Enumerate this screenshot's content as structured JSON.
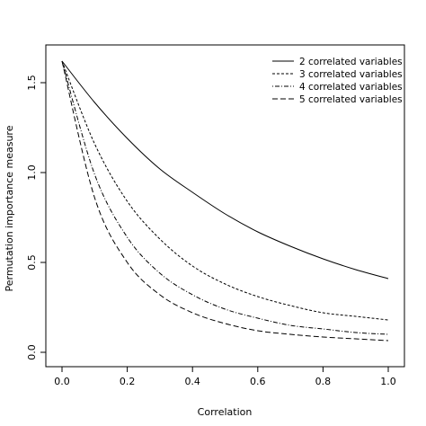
{
  "chart_data": {
    "type": "line",
    "title": "",
    "xlabel": "Correlation",
    "ylabel": "Permutation importance measure",
    "xlim": [
      0.0,
      1.0
    ],
    "ylim": [
      0.0,
      1.6
    ],
    "xticks": [
      "0.0",
      "0.2",
      "0.4",
      "0.6",
      "0.8",
      "1.0"
    ],
    "yticks": [
      "0.0",
      "0.5",
      "1.0",
      "1.5"
    ],
    "grid": false,
    "legend_position": "top-right",
    "x": [
      0.0,
      0.1,
      0.2,
      0.3,
      0.4,
      0.5,
      0.6,
      0.7,
      0.8,
      0.9,
      1.0
    ],
    "series": [
      {
        "name": "2 correlated variables",
        "style": "solid",
        "values": [
          1.62,
          1.39,
          1.19,
          1.02,
          0.89,
          0.77,
          0.67,
          0.59,
          0.52,
          0.46,
          0.41
        ]
      },
      {
        "name": "3 correlated variables",
        "style": "dashed",
        "values": [
          1.62,
          1.16,
          0.84,
          0.63,
          0.48,
          0.38,
          0.31,
          0.26,
          0.22,
          0.2,
          0.18
        ]
      },
      {
        "name": "4 correlated variables",
        "style": "dot-dash",
        "values": [
          1.62,
          0.99,
          0.64,
          0.44,
          0.32,
          0.24,
          0.19,
          0.15,
          0.13,
          0.11,
          0.1
        ]
      },
      {
        "name": "5 correlated variables",
        "style": "long-dash",
        "values": [
          1.62,
          0.86,
          0.5,
          0.32,
          0.22,
          0.16,
          0.12,
          0.1,
          0.085,
          0.075,
          0.065
        ]
      }
    ]
  }
}
